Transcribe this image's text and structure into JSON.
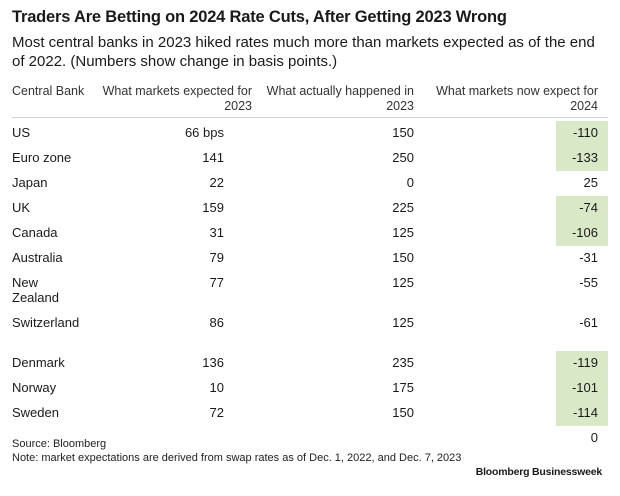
{
  "title": "Traders Are Betting on 2024 Rate Cuts, After Getting 2023 Wrong",
  "subtitle": "Most central banks in 2023 hiked rates much more than markets expected as of the end of 2022. (Numbers show change in basis points.)",
  "headers": [
    "Central Bank",
    "What markets expected for 2023",
    "What actually happened in 2023",
    "What markets now expect for 2024"
  ],
  "chart_data": {
    "type": "table",
    "columns": [
      "Central Bank",
      "What markets expected for 2023",
      "What actually happened in 2023",
      "What markets now expect for 2024"
    ],
    "rows": [
      {
        "bank": "US",
        "expected_2023": "66 bps",
        "actual_2023": "150",
        "expect_2024": "-110",
        "highlight": true
      },
      {
        "bank": "Euro zone",
        "expected_2023": "141",
        "actual_2023": "250",
        "expect_2024": "-133",
        "highlight": true
      },
      {
        "bank": "Japan",
        "expected_2023": "22",
        "actual_2023": "0",
        "expect_2024": "25",
        "highlight": false
      },
      {
        "bank": "UK",
        "expected_2023": "159",
        "actual_2023": "225",
        "expect_2024": "-74",
        "highlight": true
      },
      {
        "bank": "Canada",
        "expected_2023": "31",
        "actual_2023": "125",
        "expect_2024": "-106",
        "highlight": true
      },
      {
        "bank": "Australia",
        "expected_2023": "79",
        "actual_2023": "150",
        "expect_2024": "-31",
        "highlight": false
      },
      {
        "bank": "New Zealand",
        "expected_2023": "77",
        "actual_2023": "125",
        "expect_2024": "-55",
        "highlight": false
      },
      {
        "bank": "Switzerland",
        "expected_2023": "86",
        "actual_2023": "125",
        "expect_2024": "-61",
        "highlight": false
      },
      {
        "bank": "Denmark",
        "expected_2023": "136",
        "actual_2023": "235",
        "expect_2024": "-119",
        "highlight": true
      },
      {
        "bank": "Norway",
        "expected_2023": "10",
        "actual_2023": "175",
        "expect_2024": "-101",
        "highlight": true
      },
      {
        "bank": "Sweden",
        "expected_2023": "72",
        "actual_2023": "150",
        "expect_2024": "-114",
        "highlight": true
      },
      {
        "bank": "",
        "expected_2023": "",
        "actual_2023": "",
        "expect_2024": "0",
        "highlight": false
      }
    ],
    "highlight_color": "#d9e8c6"
  },
  "footer": {
    "source": "Source: Bloomberg",
    "note": "Note: market expectations are derived from swap rates as of Dec. 1, 2022, and Dec. 7, 2023"
  },
  "brand": "Bloomberg Businessweek"
}
